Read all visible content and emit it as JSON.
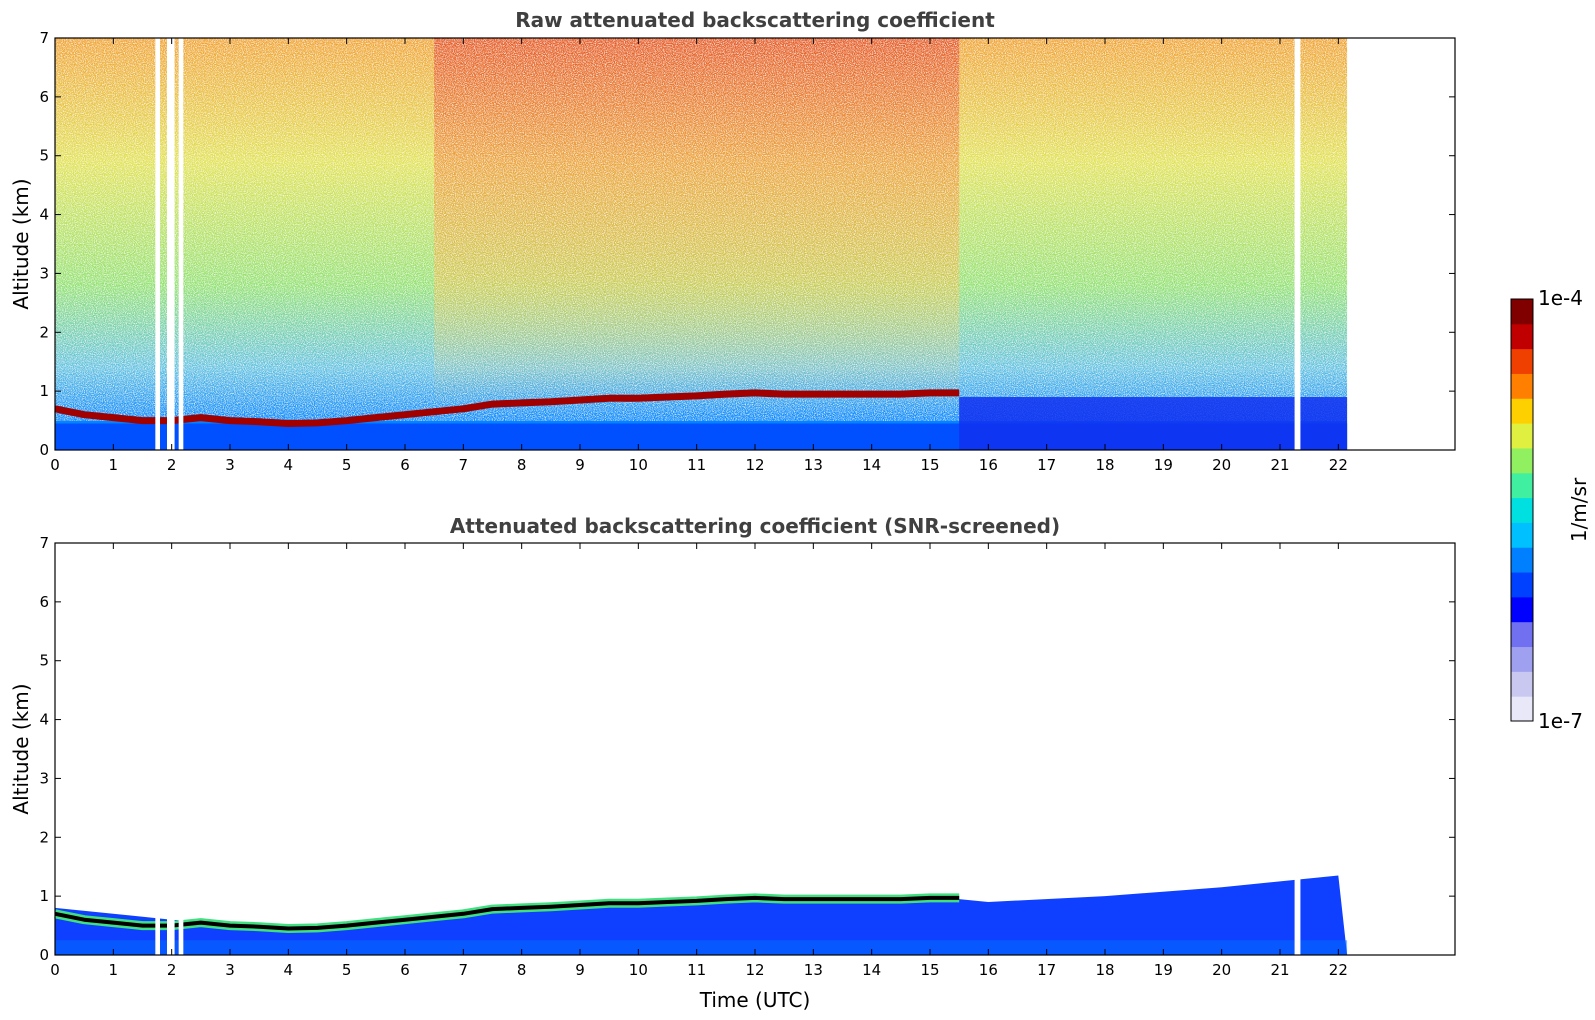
{
  "colorbar": {
    "max_label": "1e-4",
    "min_label": "1e-7",
    "unit_label": "1/m/sr",
    "colors": [
      "#e8e8f8",
      "#c8c8f0",
      "#a0a0f0",
      "#7070f0",
      "#0000ff",
      "#0040ff",
      "#0080ff",
      "#00c0ff",
      "#00e0e0",
      "#40f0a0",
      "#90f060",
      "#e0f040",
      "#ffd000",
      "#ff8000",
      "#f04000",
      "#c00000",
      "#800000"
    ]
  },
  "chart_data": [
    {
      "type": "heatmap",
      "title": "Raw attenuated backscattering coefficient",
      "xlabel": "",
      "ylabel": "Altitude (km)",
      "xlim": [
        0,
        24
      ],
      "ylim": [
        0,
        7
      ],
      "x_ticks": [
        "0",
        "1",
        "2",
        "3",
        "4",
        "5",
        "6",
        "7",
        "8",
        "9",
        "10",
        "11",
        "12",
        "13",
        "14",
        "15",
        "16",
        "17",
        "18",
        "19",
        "20",
        "21",
        "22"
      ],
      "y_ticks": [
        "0",
        "1",
        "2",
        "3",
        "4",
        "5",
        "6",
        "7"
      ],
      "data_end_hour": 22.15,
      "data_gaps_hours": [
        [
          1.72,
          1.8
        ],
        [
          1.92,
          2.05
        ],
        [
          2.12,
          2.2
        ],
        [
          21.25,
          21.35
        ]
      ],
      "cloud_base_km": {
        "x": [
          0,
          0.5,
          1,
          1.5,
          2,
          2.5,
          3,
          3.5,
          4,
          4.5,
          5,
          5.5,
          6,
          6.5,
          7,
          7.5,
          8,
          8.5,
          9,
          9.5,
          10,
          10.5,
          11,
          11.5,
          12,
          12.5,
          13,
          13.5,
          14,
          14.5,
          15,
          15.5
        ],
        "y": [
          0.7,
          0.6,
          0.55,
          0.5,
          0.5,
          0.55,
          0.5,
          0.48,
          0.45,
          0.46,
          0.5,
          0.55,
          0.6,
          0.65,
          0.7,
          0.78,
          0.8,
          0.82,
          0.85,
          0.88,
          0.88,
          0.9,
          0.92,
          0.95,
          0.97,
          0.95,
          0.95,
          0.95,
          0.95,
          0.95,
          0.97,
          0.97
        ]
      },
      "colorbar_range": [
        "1e-7",
        "1e-4"
      ],
      "colorbar_label": "1/m/sr"
    },
    {
      "type": "heatmap",
      "title": "Attenuated backscattering coefficient (SNR-screened)",
      "xlabel": "Time (UTC)",
      "ylabel": "Altitude (km)",
      "xlim": [
        0,
        24
      ],
      "ylim": [
        0,
        7
      ],
      "x_ticks": [
        "0",
        "1",
        "2",
        "3",
        "4",
        "5",
        "6",
        "7",
        "8",
        "9",
        "10",
        "11",
        "12",
        "13",
        "14",
        "15",
        "16",
        "17",
        "18",
        "19",
        "20",
        "21",
        "22"
      ],
      "y_ticks": [
        "0",
        "1",
        "2",
        "3",
        "4",
        "5",
        "6",
        "7"
      ],
      "data_end_hour": 22.15,
      "data_gaps_hours": [
        [
          1.72,
          1.8
        ],
        [
          1.92,
          2.05
        ],
        [
          2.12,
          2.2
        ],
        [
          21.25,
          21.35
        ]
      ],
      "boundary_layer_top_km": {
        "x": [
          0,
          2,
          4,
          6,
          8,
          10,
          12,
          13,
          15.5,
          16,
          18,
          20,
          22
        ],
        "y": [
          0.8,
          0.6,
          0.45,
          0.6,
          0.85,
          0.9,
          1.0,
          0.95,
          0.95,
          0.9,
          1.0,
          1.15,
          1.35
        ]
      },
      "colorbar_range": [
        "1e-7",
        "1e-4"
      ],
      "colorbar_label": "1/m/sr"
    }
  ]
}
